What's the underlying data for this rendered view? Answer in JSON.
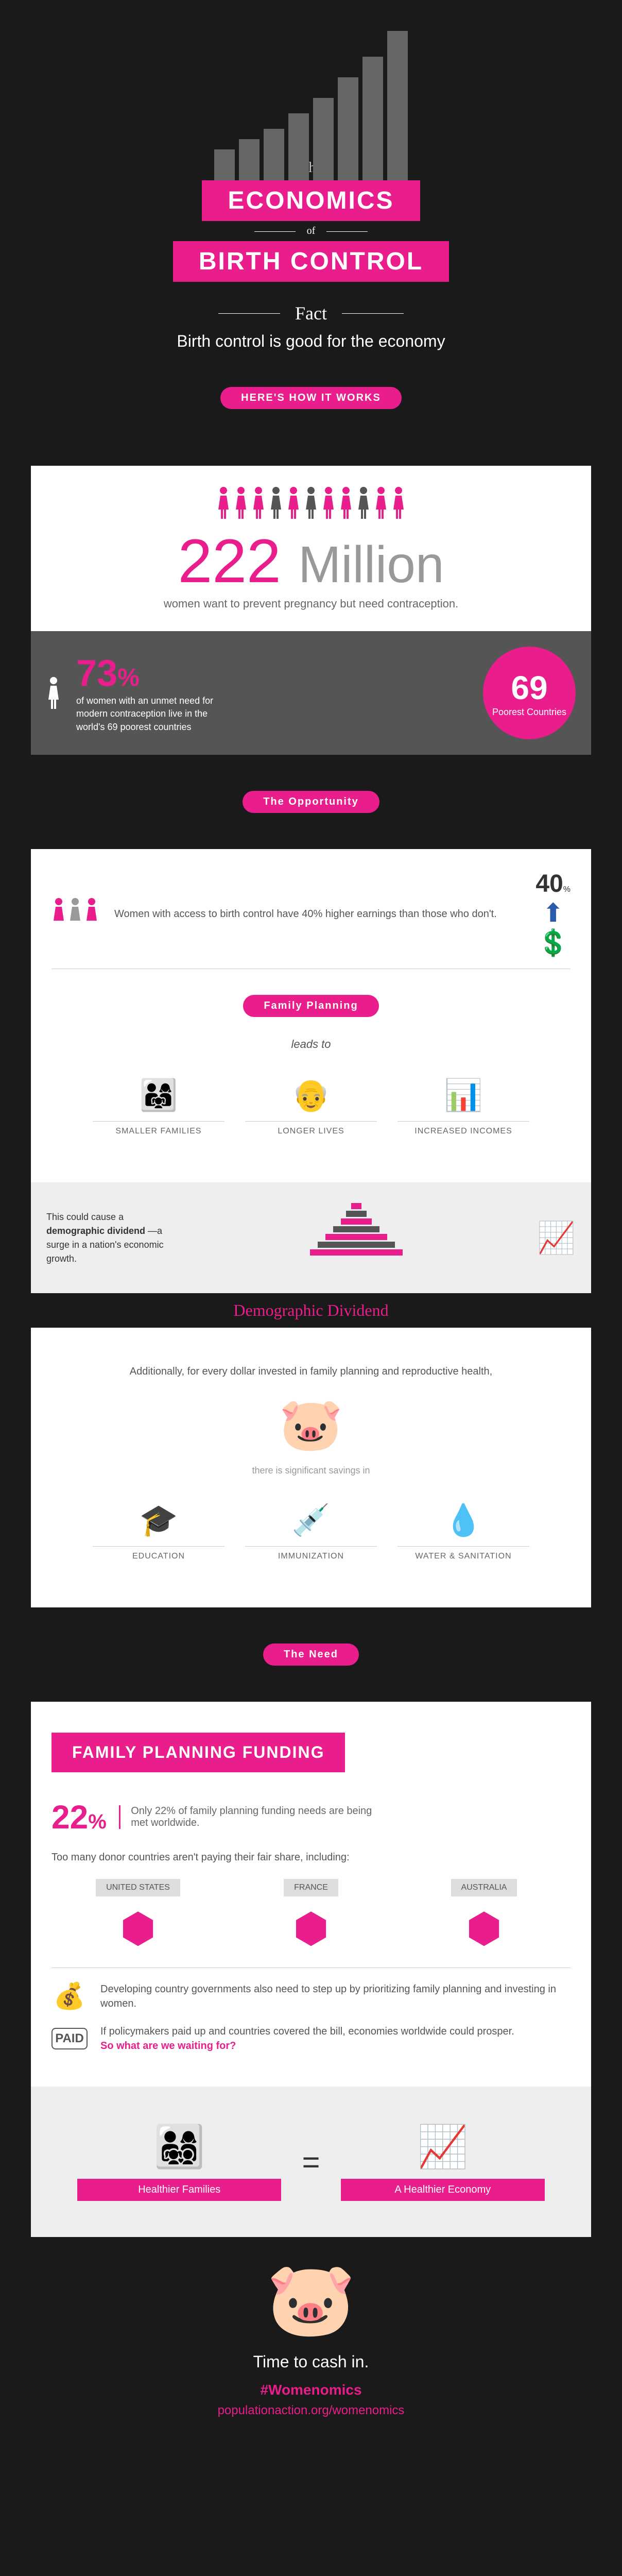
{
  "header": {
    "the": "The",
    "economics": "ECONOMICS",
    "of": "of",
    "birth_control": "BIRTH CONTROL",
    "fact_label": "Fact",
    "fact_text": "Birth control is good for the economy",
    "how_it_works": "HERE'S HOW IT WORKS",
    "bar_heights": [
      60,
      80,
      100,
      130,
      160,
      200,
      240,
      290
    ]
  },
  "stat222": {
    "number": "222",
    "unit": "Million",
    "text": "women want to prevent pregnancy but need contraception.",
    "people_colors": [
      "#e91e8c",
      "#e91e8c",
      "#e91e8c",
      "#555",
      "#e91e8c",
      "#555",
      "#e91e8c",
      "#e91e8c",
      "#555",
      "#e91e8c",
      "#e91e8c"
    ]
  },
  "stat73": {
    "pct": "73",
    "pct_sym": "%",
    "text": "of women with an unmet need for modern contraception live in the world's 69 poorest countries",
    "badge_num": "69",
    "badge_label": "Poorest Countries"
  },
  "opportunity": {
    "title": "The Opportunity",
    "forty": "40",
    "forty_sym": "%",
    "text": "Women with access to birth control have 40% higher earnings than those who don't.",
    "family_planning": "Family Planning",
    "leads_to": "leads to",
    "items": [
      {
        "label": "SMALLER FAMILIES",
        "icon": "👨‍👩‍👧"
      },
      {
        "label": "LONGER LIVES",
        "icon": "👴"
      },
      {
        "label": "INCREASED INCOMES",
        "icon": "📊"
      }
    ]
  },
  "dividend": {
    "text_pre": "This could cause a ",
    "text_bold": "demographic dividend",
    "text_post": "—a surge in a nation's economic growth.",
    "title": "Demographic Dividend"
  },
  "savings": {
    "intro": "Additionally, for every dollar invested in family planning and reproductive health,",
    "bridge": "there is significant savings in",
    "items": [
      {
        "label": "EDUCATION",
        "icon": "🎓"
      },
      {
        "label": "IMMUNIZATION",
        "icon": "💉"
      },
      {
        "label": "WATER & SANITATION",
        "icon": "💧"
      }
    ]
  },
  "need": {
    "title": "The Need",
    "banner": "FAMILY PLANNING FUNDING",
    "pct": "22",
    "pct_sym": "%",
    "text": "Only 22% of family planning funding needs are being met worldwide.",
    "donor_text": "Too many donor countries aren't paying their fair share, including:",
    "countries": [
      {
        "name": "UNITED STATES"
      },
      {
        "name": "FRANCE"
      },
      {
        "name": "AUSTRALIA"
      }
    ],
    "row1_text": "Developing country governments also need to step up by prioritizing family planning and investing in women.",
    "row2_text": "If policymakers paid up and countries covered the bill, economies worldwide could prosper.",
    "row2_bold": "So what are we waiting for?"
  },
  "equation": {
    "left": "Healthier Families",
    "right": "A Healthier Economy"
  },
  "footer": {
    "cash": "Time to cash in.",
    "hash": "#Womenomics",
    "url": "populationaction.org/womenomics"
  },
  "colors": {
    "pink": "#e91e8c",
    "dark": "#1a1a1a",
    "gray": "#555555",
    "light": "#eeeeee"
  }
}
